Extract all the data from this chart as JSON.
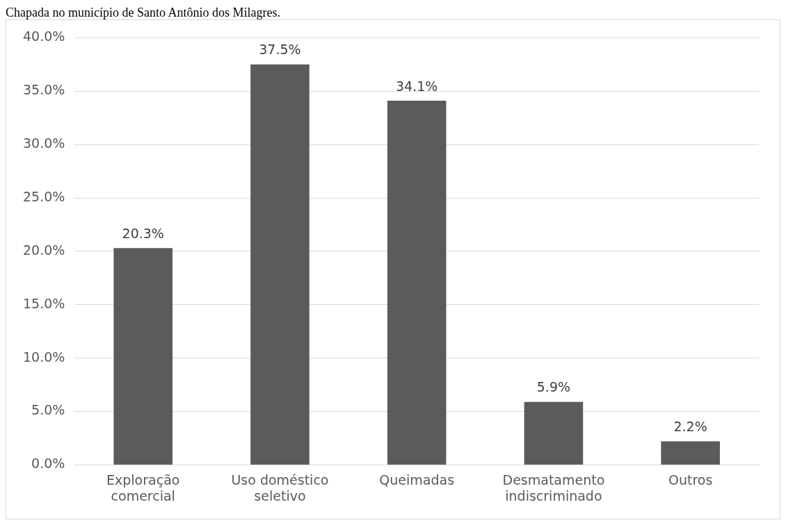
{
  "chart_data": {
    "type": "bar",
    "title": "Chapada no município de Santo Antônio dos Milagres.",
    "categories": [
      "Exploração comercial",
      "Uso doméstico seletivo",
      "Queimadas",
      "Desmatamento indiscriminado",
      "Outros"
    ],
    "values": [
      20.3,
      37.5,
      34.1,
      5.9,
      2.2
    ],
    "color": "#5b5b5b",
    "ylim": [
      0,
      40
    ],
    "yticks": [
      {
        "value": 0,
        "label": "0.0%"
      },
      {
        "value": 5,
        "label": "5.0%"
      },
      {
        "value": 10,
        "label": "10.0%"
      },
      {
        "value": 15,
        "label": "15.0%"
      },
      {
        "value": 20,
        "label": "20.0%"
      },
      {
        "value": 25,
        "label": "25.0%"
      },
      {
        "value": 30,
        "label": "30.0%"
      },
      {
        "value": 35,
        "label": "35.0%"
      },
      {
        "value": 40,
        "label": "40.0%"
      }
    ],
    "grid": "y",
    "legend": false,
    "value_labels": [
      "20.3%",
      "37.5%",
      "34.1%",
      "5.9%",
      "2.2%"
    ]
  }
}
